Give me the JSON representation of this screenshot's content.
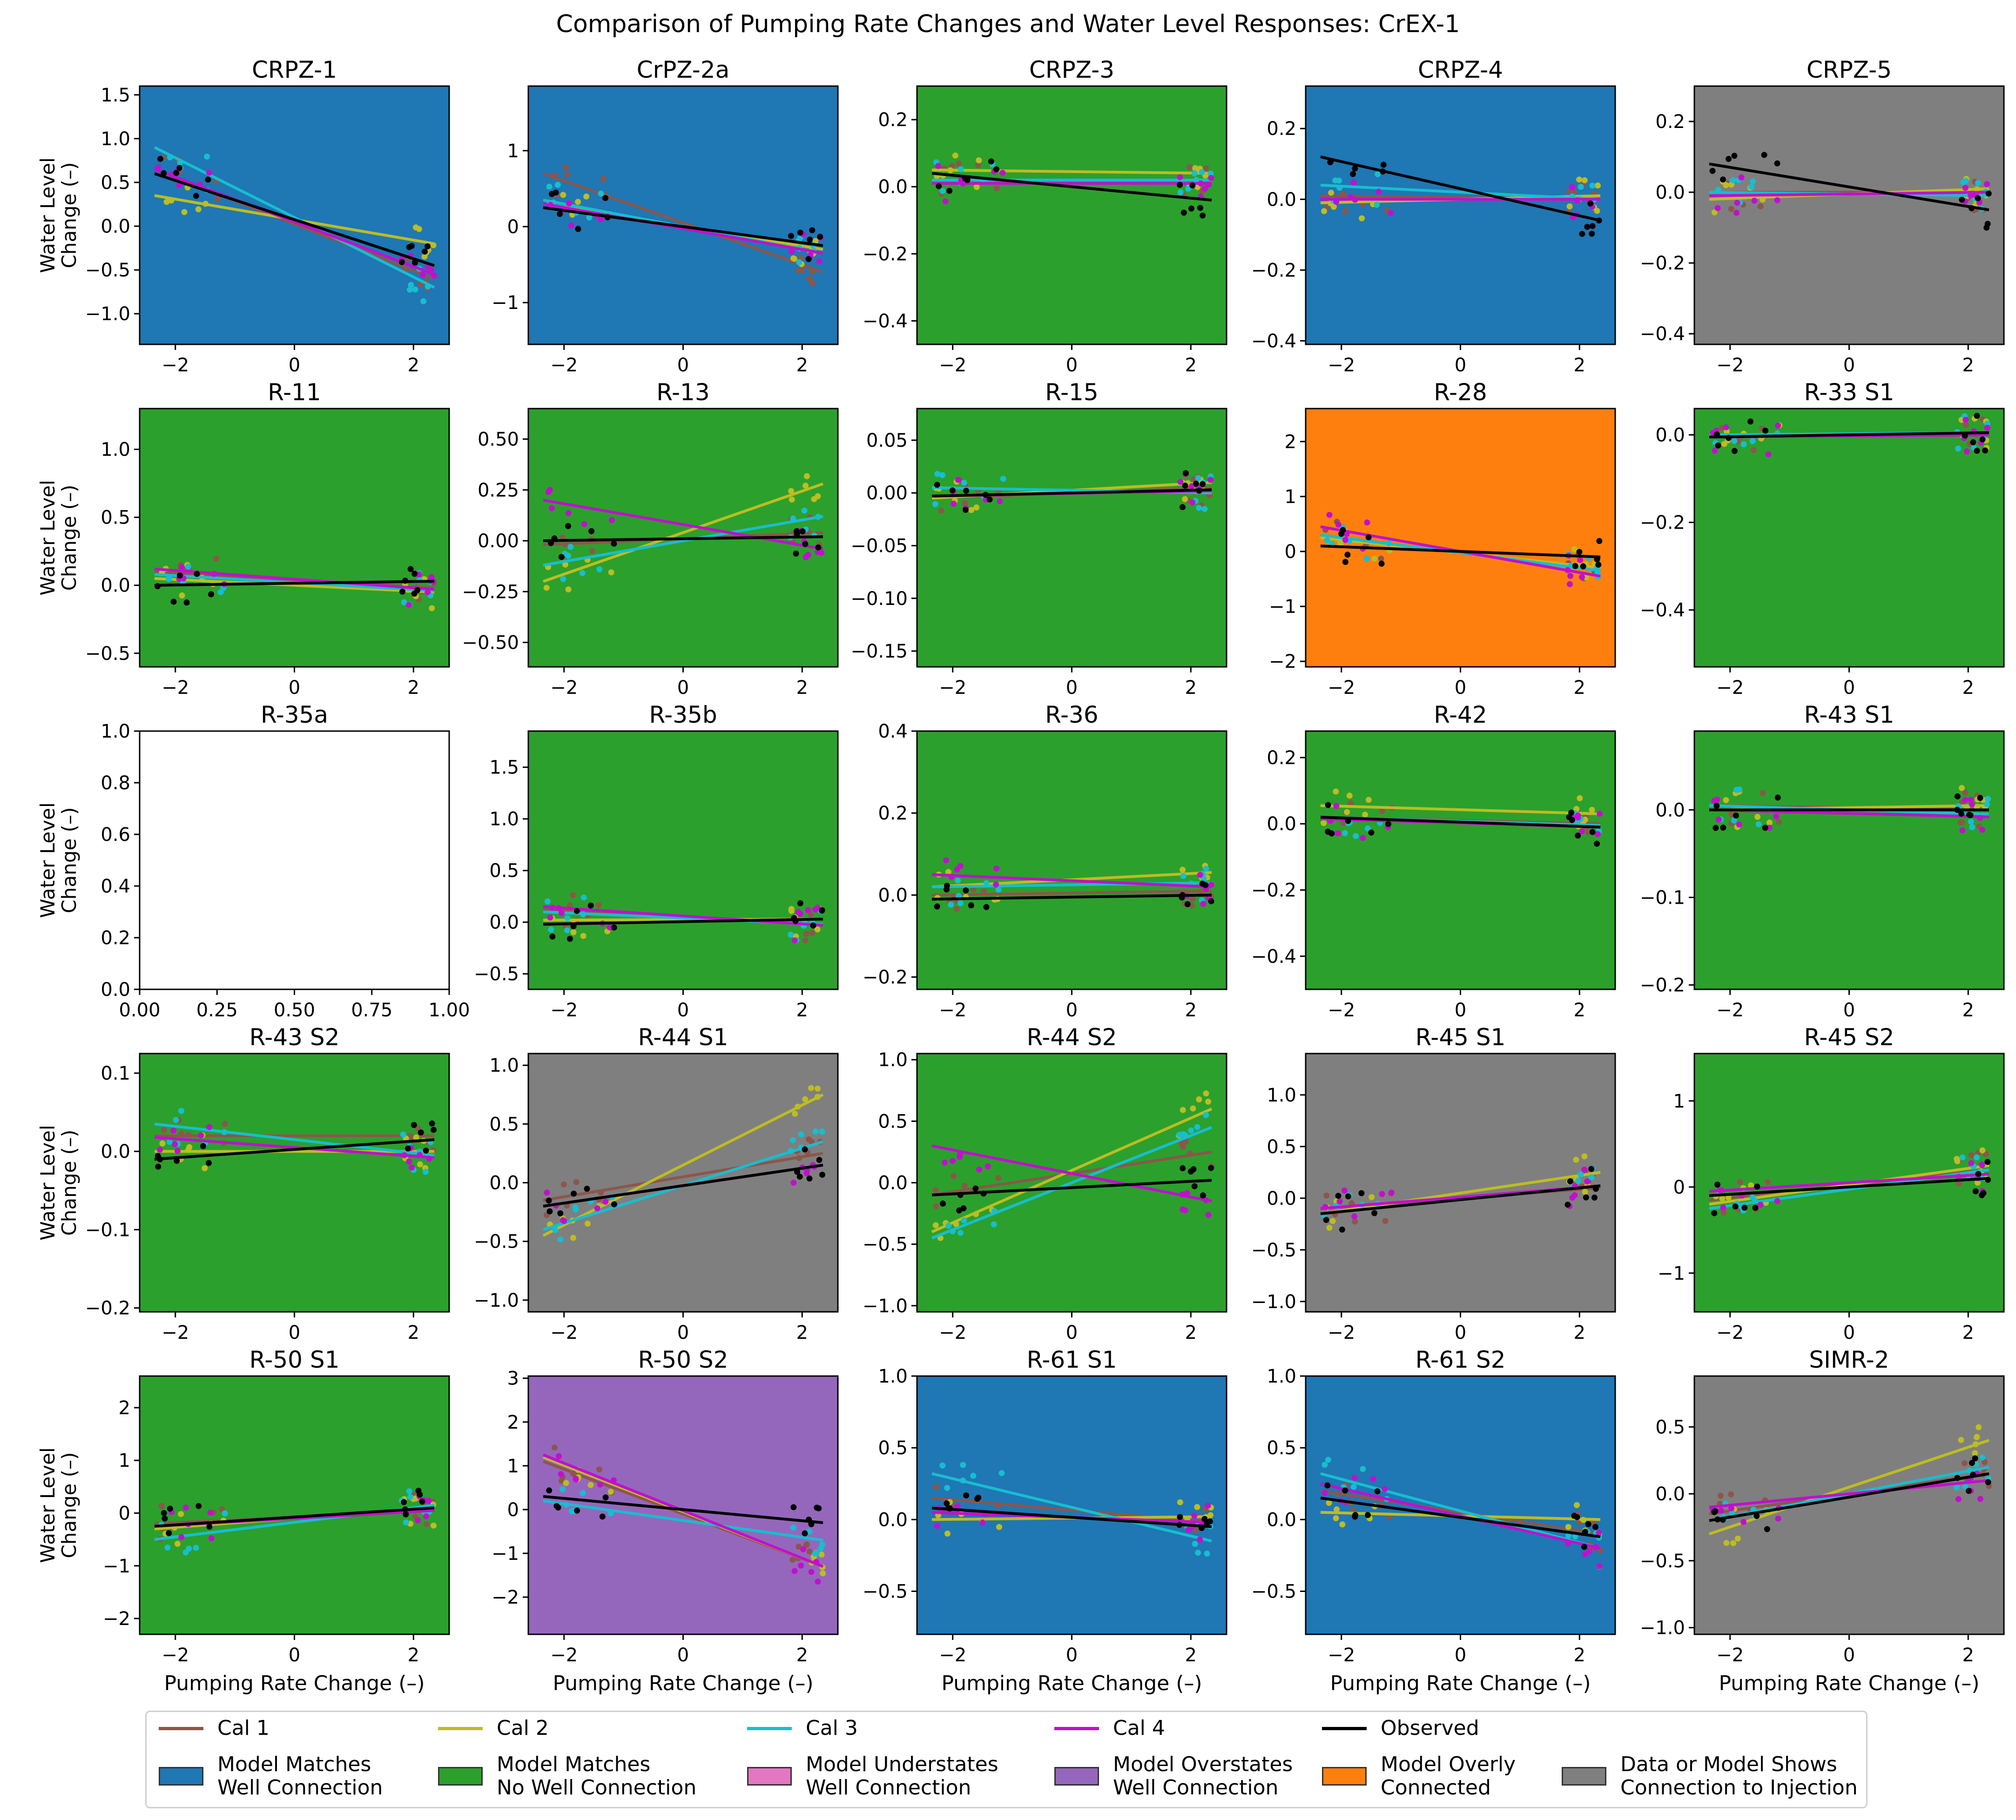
{
  "title": "Comparison of Pumping Rate Changes and Water Level Responses: CrEX-1",
  "colors": {
    "cal1": "#8c564b",
    "cal2": "#bcbd22",
    "cal3": "#17becf",
    "cal4": "#c20fcf",
    "observed": "#000000",
    "matches_connection": "#1f77b4",
    "matches_no_connection": "#2ca02c",
    "understates": "#e377c2",
    "overstates": "#9467bd",
    "overly": "#ff7f0e",
    "injection": "#7f7f7f"
  },
  "legend": {
    "cal1": "Cal 1",
    "cal2": "Cal 2",
    "cal3": "Cal 3",
    "cal4": "Cal 4",
    "observed": "Observed",
    "matches_connection": "Model Matches\nWell Connection",
    "matches_no_connection": "Model Matches\nNo Well Connection",
    "understates": "Model Understates\nWell Connection",
    "overstates": "Model Overstates\nWell Connection",
    "overly": "Model Overly\nConnected",
    "injection": "Data or Model Shows\nConnection to Injection"
  },
  "chart_data": [
    {
      "type": "scatter",
      "title": "CRPZ-1",
      "category": "matches_connection",
      "ylim": [
        -1.35,
        1.6
      ],
      "yticks": [
        -1.0,
        -0.5,
        0.0,
        0.5,
        1.0,
        1.5
      ],
      "ylabel": "Water Level\nChange (–)",
      "fits": {
        "cal1": [
          0.65,
          -0.6
        ],
        "cal2": [
          0.35,
          -0.2
        ],
        "cal3": [
          0.9,
          -0.7
        ],
        "cal4": [
          0.65,
          -0.55
        ],
        "observed": [
          0.6,
          -0.45
        ]
      }
    },
    {
      "type": "scatter",
      "title": "CrPZ-2a",
      "category": "matches_connection",
      "ylim": [
        -1.55,
        1.85
      ],
      "yticks": [
        -1,
        0,
        1
      ],
      "fits": {
        "cal1": [
          0.7,
          -0.6
        ],
        "cal2": [
          0.3,
          -0.3
        ],
        "cal3": [
          0.35,
          -0.35
        ],
        "cal4": [
          0.3,
          -0.35
        ],
        "observed": [
          0.25,
          -0.25
        ]
      }
    },
    {
      "type": "scatter",
      "title": "CRPZ-3",
      "category": "matches_no_connection",
      "ylim": [
        -0.47,
        0.3
      ],
      "yticks": [
        -0.4,
        -0.2,
        0.0,
        0.2
      ],
      "fits": {
        "cal1": [
          0.02,
          0.02
        ],
        "cal2": [
          0.05,
          0.04
        ],
        "cal3": [
          0.02,
          0.02
        ],
        "cal4": [
          0.01,
          0.01
        ],
        "observed": [
          0.04,
          -0.04
        ]
      }
    },
    {
      "type": "scatter",
      "title": "CRPZ-4",
      "category": "matches_connection",
      "ylim": [
        -0.41,
        0.32
      ],
      "yticks": [
        -0.4,
        -0.2,
        0.0,
        0.2
      ],
      "fits": {
        "cal1": [
          0.01,
          0.0
        ],
        "cal2": [
          -0.01,
          0.01
        ],
        "cal3": [
          0.04,
          0.0
        ],
        "cal4": [
          0.0,
          0.0
        ],
        "observed": [
          0.12,
          -0.06
        ]
      }
    },
    {
      "type": "scatter",
      "title": "CRPZ-5",
      "category": "injection",
      "ylim": [
        -0.43,
        0.3
      ],
      "yticks": [
        -0.4,
        -0.2,
        0.0,
        0.2
      ],
      "fits": {
        "cal1": [
          0.0,
          0.0
        ],
        "cal2": [
          -0.02,
          0.01
        ],
        "cal3": [
          0.0,
          -0.01
        ],
        "cal4": [
          -0.01,
          0.0
        ],
        "observed": [
          0.08,
          -0.05
        ]
      }
    },
    {
      "type": "scatter",
      "title": "R-11",
      "category": "matches_no_connection",
      "ylim": [
        -0.6,
        1.3
      ],
      "yticks": [
        -0.5,
        0.0,
        0.5,
        1.0
      ],
      "ylabel": "Water Level\nChange (–)",
      "fits": {
        "cal1": [
          0.1,
          -0.02
        ],
        "cal2": [
          0.05,
          -0.05
        ],
        "cal3": [
          0.08,
          -0.04
        ],
        "cal4": [
          0.12,
          -0.03
        ],
        "observed": [
          0.0,
          0.03
        ]
      }
    },
    {
      "type": "scatter",
      "title": "R-13",
      "category": "matches_no_connection",
      "ylim": [
        -0.62,
        0.65
      ],
      "yticks": [
        -0.5,
        -0.25,
        0.0,
        0.25,
        0.5
      ],
      "fits": {
        "cal1": [
          -0.02,
          0.04
        ],
        "cal2": [
          -0.2,
          0.28
        ],
        "cal3": [
          -0.12,
          0.12
        ],
        "cal4": [
          0.2,
          -0.04
        ],
        "observed": [
          0.0,
          0.02
        ]
      }
    },
    {
      "type": "scatter",
      "title": "R-15",
      "category": "matches_no_connection",
      "ylim": [
        -0.165,
        0.08
      ],
      "yticks": [
        -0.15,
        -0.1,
        -0.05,
        0.0,
        0.05
      ],
      "fits": {
        "cal1": [
          -0.005,
          0.005
        ],
        "cal2": [
          -0.005,
          0.01
        ],
        "cal3": [
          0.005,
          0.0
        ],
        "cal4": [
          -0.003,
          0.002
        ],
        "observed": [
          -0.003,
          0.003
        ]
      }
    },
    {
      "type": "scatter",
      "title": "R-28",
      "category": "overly",
      "ylim": [
        -2.1,
        2.6
      ],
      "yticks": [
        -2,
        -1,
        0,
        1,
        2
      ],
      "fits": {
        "cal1": [
          0.3,
          -0.35
        ],
        "cal2": [
          0.25,
          -0.3
        ],
        "cal3": [
          0.3,
          -0.35
        ],
        "cal4": [
          0.45,
          -0.45
        ],
        "observed": [
          0.1,
          -0.1
        ]
      }
    },
    {
      "type": "scatter",
      "title": "R-33 S1",
      "category": "matches_no_connection",
      "ylim": [
        -0.53,
        0.06
      ],
      "yticks": [
        -0.4,
        -0.2,
        0.0
      ],
      "fits": {
        "cal1": [
          -0.005,
          0.005
        ],
        "cal2": [
          -0.005,
          0.005
        ],
        "cal3": [
          0.0,
          0.005
        ],
        "cal4": [
          -0.005,
          0.0
        ],
        "observed": [
          -0.005,
          0.005
        ]
      }
    },
    {
      "type": "empty",
      "title": "R-35a",
      "ylim": [
        0,
        1
      ],
      "yticks": [
        0.0,
        0.2,
        0.4,
        0.6,
        0.8,
        1.0
      ],
      "ylabel": "Water Level\nChange (–)",
      "xticks": [
        "0.00",
        "0.25",
        "0.50",
        "0.75",
        "1.00"
      ]
    },
    {
      "type": "scatter",
      "title": "R-35b",
      "category": "matches_no_connection",
      "ylim": [
        -0.65,
        1.85
      ],
      "yticks": [
        -0.5,
        0.0,
        0.5,
        1.0,
        1.5
      ],
      "fits": {
        "cal1": [
          0.12,
          -0.02
        ],
        "cal2": [
          0.02,
          0.03
        ],
        "cal3": [
          0.1,
          -0.02
        ],
        "cal4": [
          0.15,
          -0.03
        ],
        "observed": [
          -0.02,
          0.03
        ]
      }
    },
    {
      "type": "scatter",
      "title": "R-36",
      "category": "matches_no_connection",
      "ylim": [
        -0.23,
        0.4
      ],
      "yticks": [
        -0.2,
        0.0,
        0.2,
        0.4
      ],
      "fits": {
        "cal1": [
          0.0,
          0.01
        ],
        "cal2": [
          0.02,
          0.055
        ],
        "cal3": [
          0.02,
          0.03
        ],
        "cal4": [
          0.05,
          0.02
        ],
        "observed": [
          -0.01,
          0.0
        ]
      }
    },
    {
      "type": "scatter",
      "title": "R-42",
      "category": "matches_no_connection",
      "ylim": [
        -0.5,
        0.28
      ],
      "yticks": [
        -0.4,
        -0.2,
        0.0,
        0.2
      ],
      "fits": {
        "cal1": [
          0.02,
          0.0
        ],
        "cal2": [
          0.055,
          0.03
        ],
        "cal3": [
          0.02,
          -0.005
        ],
        "cal4": [
          0.015,
          -0.01
        ],
        "observed": [
          0.02,
          -0.01
        ]
      }
    },
    {
      "type": "scatter",
      "title": "R-43 S1",
      "category": "matches_no_connection",
      "ylim": [
        -0.205,
        0.09
      ],
      "yticks": [
        -0.2,
        -0.1,
        0.0
      ],
      "fits": {
        "cal1": [
          0.005,
          0.0
        ],
        "cal2": [
          0.0,
          0.005
        ],
        "cal3": [
          0.005,
          -0.005
        ],
        "cal4": [
          0.0,
          -0.008
        ],
        "observed": [
          0.0,
          0.0
        ]
      }
    },
    {
      "type": "scatter",
      "title": "R-43 S2",
      "category": "matches_no_connection",
      "ylim": [
        -0.205,
        0.125
      ],
      "yticks": [
        -0.2,
        -0.1,
        0.0,
        0.1
      ],
      "ylabel": "Water Level\nChange (–)",
      "fits": {
        "cal1": [
          0.02,
          0.02
        ],
        "cal2": [
          0.0,
          0.0
        ],
        "cal3": [
          0.035,
          -0.005
        ],
        "cal4": [
          0.018,
          -0.008
        ],
        "observed": [
          -0.01,
          0.015
        ]
      }
    },
    {
      "type": "scatter",
      "title": "R-44 S1",
      "category": "injection",
      "ylim": [
        -1.1,
        1.1
      ],
      "yticks": [
        -1.0,
        -0.5,
        0.0,
        0.5,
        1.0
      ],
      "fits": {
        "cal1": [
          -0.15,
          0.25
        ],
        "cal2": [
          -0.45,
          0.75
        ],
        "cal3": [
          -0.4,
          0.35
        ],
        "cal4": [
          -0.2,
          0.15
        ],
        "observed": [
          -0.2,
          0.15
        ]
      }
    },
    {
      "type": "scatter",
      "title": "R-44 S2",
      "category": "matches_no_connection",
      "ylim": [
        -1.05,
        1.05
      ],
      "yticks": [
        -1.0,
        -0.5,
        0.0,
        0.5,
        1.0
      ],
      "fits": {
        "cal1": [
          -0.1,
          0.25
        ],
        "cal2": [
          -0.4,
          0.6
        ],
        "cal3": [
          -0.45,
          0.45
        ],
        "cal4": [
          0.3,
          -0.15
        ],
        "observed": [
          -0.1,
          0.02
        ]
      }
    },
    {
      "type": "scatter",
      "title": "R-45 S1",
      "category": "injection",
      "ylim": [
        -1.1,
        1.4
      ],
      "yticks": [
        -1.0,
        -0.5,
        0.0,
        0.5,
        1.0
      ],
      "fits": {
        "cal1": [
          -0.1,
          0.1
        ],
        "cal2": [
          -0.15,
          0.25
        ],
        "cal3": [
          -0.15,
          0.12
        ],
        "cal4": [
          -0.1,
          0.12
        ],
        "observed": [
          -0.15,
          0.12
        ]
      }
    },
    {
      "type": "scatter",
      "title": "R-45 S2",
      "category": "matches_no_connection",
      "ylim": [
        -1.45,
        1.55
      ],
      "yticks": [
        -1,
        0,
        1
      ],
      "fits": {
        "cal1": [
          -0.15,
          0.2
        ],
        "cal2": [
          -0.2,
          0.25
        ],
        "cal3": [
          -0.25,
          0.2
        ],
        "cal4": [
          -0.05,
          0.15
        ],
        "observed": [
          -0.1,
          0.1
        ]
      }
    },
    {
      "type": "scatter",
      "title": "R-50 S1",
      "category": "matches_no_connection",
      "ylim": [
        -2.3,
        2.6
      ],
      "yticks": [
        -2,
        -1,
        0,
        1,
        2
      ],
      "ylabel": "Water Level\nChange (–)",
      "fits": {
        "cal1": [
          -0.2,
          0.05
        ],
        "cal2": [
          -0.3,
          0.1
        ],
        "cal3": [
          -0.5,
          0.15
        ],
        "cal4": [
          -0.25,
          0.05
        ],
        "observed": [
          -0.25,
          0.1
        ]
      }
    },
    {
      "type": "scatter",
      "title": "R-50 S2",
      "category": "overstates",
      "ylim": [
        -2.85,
        3.05
      ],
      "yticks": [
        -2,
        -1,
        0,
        1,
        2,
        3
      ],
      "fits": {
        "cal1": [
          1.1,
          -1.3
        ],
        "cal2": [
          1.2,
          -1.3
        ],
        "cal3": [
          0.2,
          -0.7
        ],
        "cal4": [
          1.25,
          -1.3
        ],
        "observed": [
          0.3,
          -0.3
        ]
      }
    },
    {
      "type": "scatter",
      "title": "R-61 S1",
      "category": "matches_connection",
      "ylim": [
        -0.8,
        1.0
      ],
      "yticks": [
        -0.5,
        0.0,
        0.5,
        1.0
      ],
      "fits": {
        "cal1": [
          0.15,
          -0.02
        ],
        "cal2": [
          0.0,
          0.02
        ],
        "cal3": [
          0.32,
          -0.15
        ],
        "cal4": [
          0.05,
          -0.02
        ],
        "observed": [
          0.08,
          -0.05
        ]
      }
    },
    {
      "type": "scatter",
      "title": "R-61 S2",
      "category": "matches_connection",
      "ylim": [
        -0.8,
        1.0
      ],
      "yticks": [
        -0.5,
        0.0,
        0.5,
        1.0
      ],
      "fits": {
        "cal1": [
          0.2,
          -0.1
        ],
        "cal2": [
          0.05,
          0.0
        ],
        "cal3": [
          0.32,
          -0.2
        ],
        "cal4": [
          0.25,
          -0.2
        ],
        "observed": [
          0.15,
          -0.12
        ]
      }
    },
    {
      "type": "scatter",
      "title": "SIMR-2",
      "category": "injection",
      "ylim": [
        -1.05,
        0.88
      ],
      "yticks": [
        -1.0,
        -0.5,
        0.0,
        0.5
      ],
      "fits": {
        "cal1": [
          -0.15,
          0.15
        ],
        "cal2": [
          -0.3,
          0.4
        ],
        "cal3": [
          -0.2,
          0.2
        ],
        "cal4": [
          -0.1,
          0.1
        ],
        "observed": [
          -0.2,
          0.15
        ]
      }
    }
  ],
  "xlabel": "Pumping Rate Change (–)",
  "xlim": [
    -2.6,
    2.6
  ],
  "xticks": [
    "−2",
    "0",
    "2"
  ]
}
